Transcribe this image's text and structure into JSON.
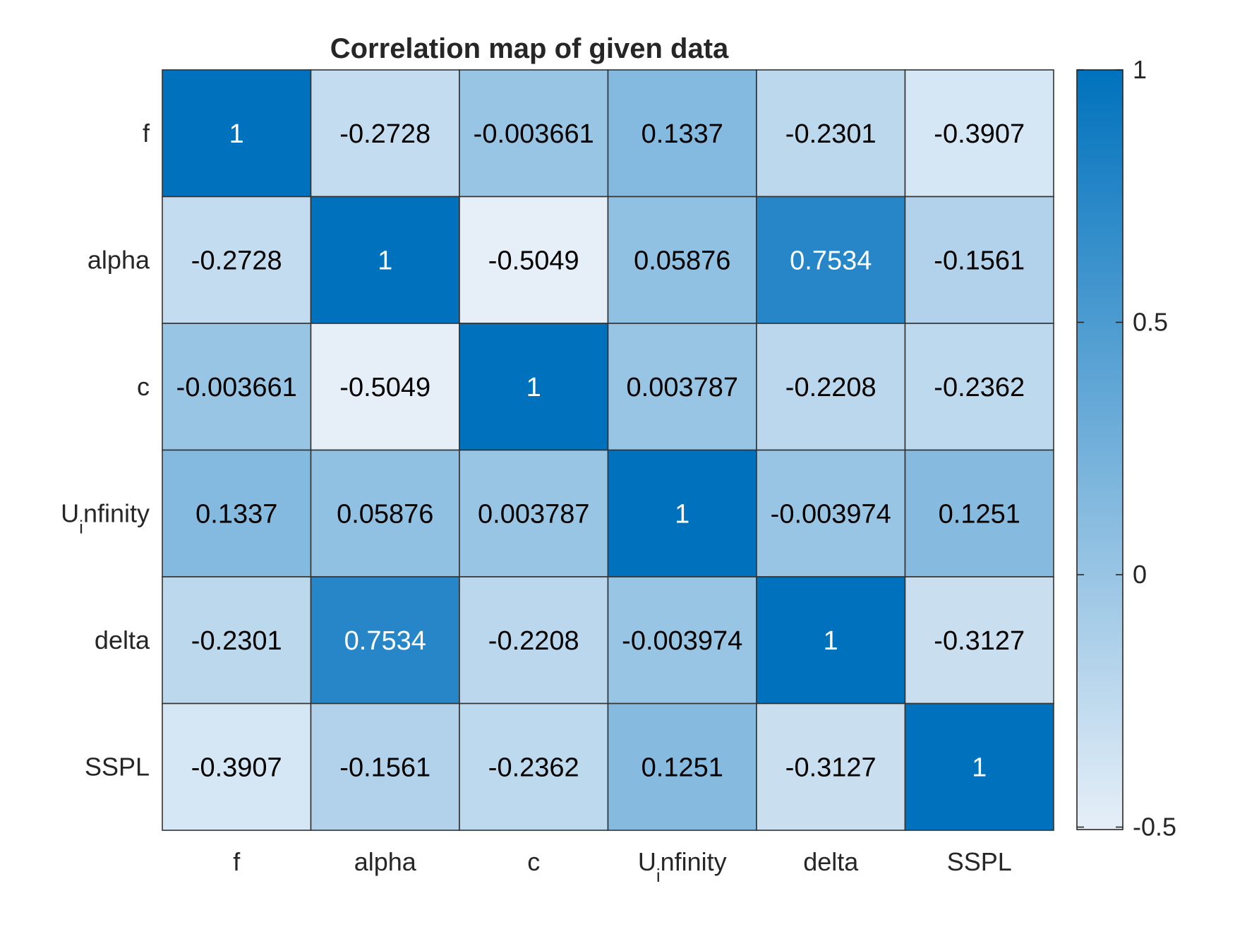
{
  "chart_data": {
    "type": "heatmap",
    "title": "Correlation map of given data",
    "labels": [
      "f",
      "alpha",
      "c",
      "U_infinity",
      "delta",
      "SSPL"
    ],
    "label_parts": [
      {
        "main": "f",
        "sub": "",
        "rest": ""
      },
      {
        "main": "alpha",
        "sub": "",
        "rest": ""
      },
      {
        "main": "c",
        "sub": "",
        "rest": ""
      },
      {
        "main": "U",
        "sub": "i",
        "rest": "nfinity"
      },
      {
        "main": "delta",
        "sub": "",
        "rest": ""
      },
      {
        "main": "SSPL",
        "sub": "",
        "rest": ""
      }
    ],
    "values": [
      [
        1,
        -0.2728,
        -0.003661,
        0.1337,
        -0.2301,
        -0.3907
      ],
      [
        -0.2728,
        1,
        -0.5049,
        0.05876,
        0.7534,
        -0.1561
      ],
      [
        -0.003661,
        -0.5049,
        1,
        0.003787,
        -0.2208,
        -0.2362
      ],
      [
        0.1337,
        0.05876,
        0.003787,
        1,
        -0.003974,
        0.1251
      ],
      [
        -0.2301,
        0.7534,
        -0.2208,
        -0.003974,
        1,
        -0.3127
      ],
      [
        -0.3907,
        -0.1561,
        -0.2362,
        0.1251,
        -0.3127,
        1
      ]
    ],
    "value_labels": [
      [
        "1",
        "-0.2728",
        "-0.003661",
        "0.1337",
        "-0.2301",
        "-0.3907"
      ],
      [
        "-0.2728",
        "1",
        "-0.5049",
        "0.05876",
        "0.7534",
        "-0.1561"
      ],
      [
        "-0.003661",
        "-0.5049",
        "1",
        "0.003787",
        "-0.2208",
        "-0.2362"
      ],
      [
        "0.1337",
        "0.05876",
        "0.003787",
        "1",
        "-0.003974",
        "0.1251"
      ],
      [
        "-0.2301",
        "0.7534",
        "-0.2208",
        "-0.003974",
        "1",
        "-0.3127"
      ],
      [
        "-0.3907",
        "-0.1561",
        "-0.2362",
        "0.1251",
        "-0.3127",
        "1"
      ]
    ],
    "colorbar": {
      "limits": [
        -0.5049,
        1
      ],
      "ticks": [
        1,
        0.5,
        0,
        -0.5
      ],
      "tick_labels": [
        "1",
        "0.5",
        "0",
        "-0.5"
      ],
      "color_low": "#e6eff8",
      "color_high": "#0072bd"
    },
    "grid": true,
    "legend": "colorbar-right"
  }
}
